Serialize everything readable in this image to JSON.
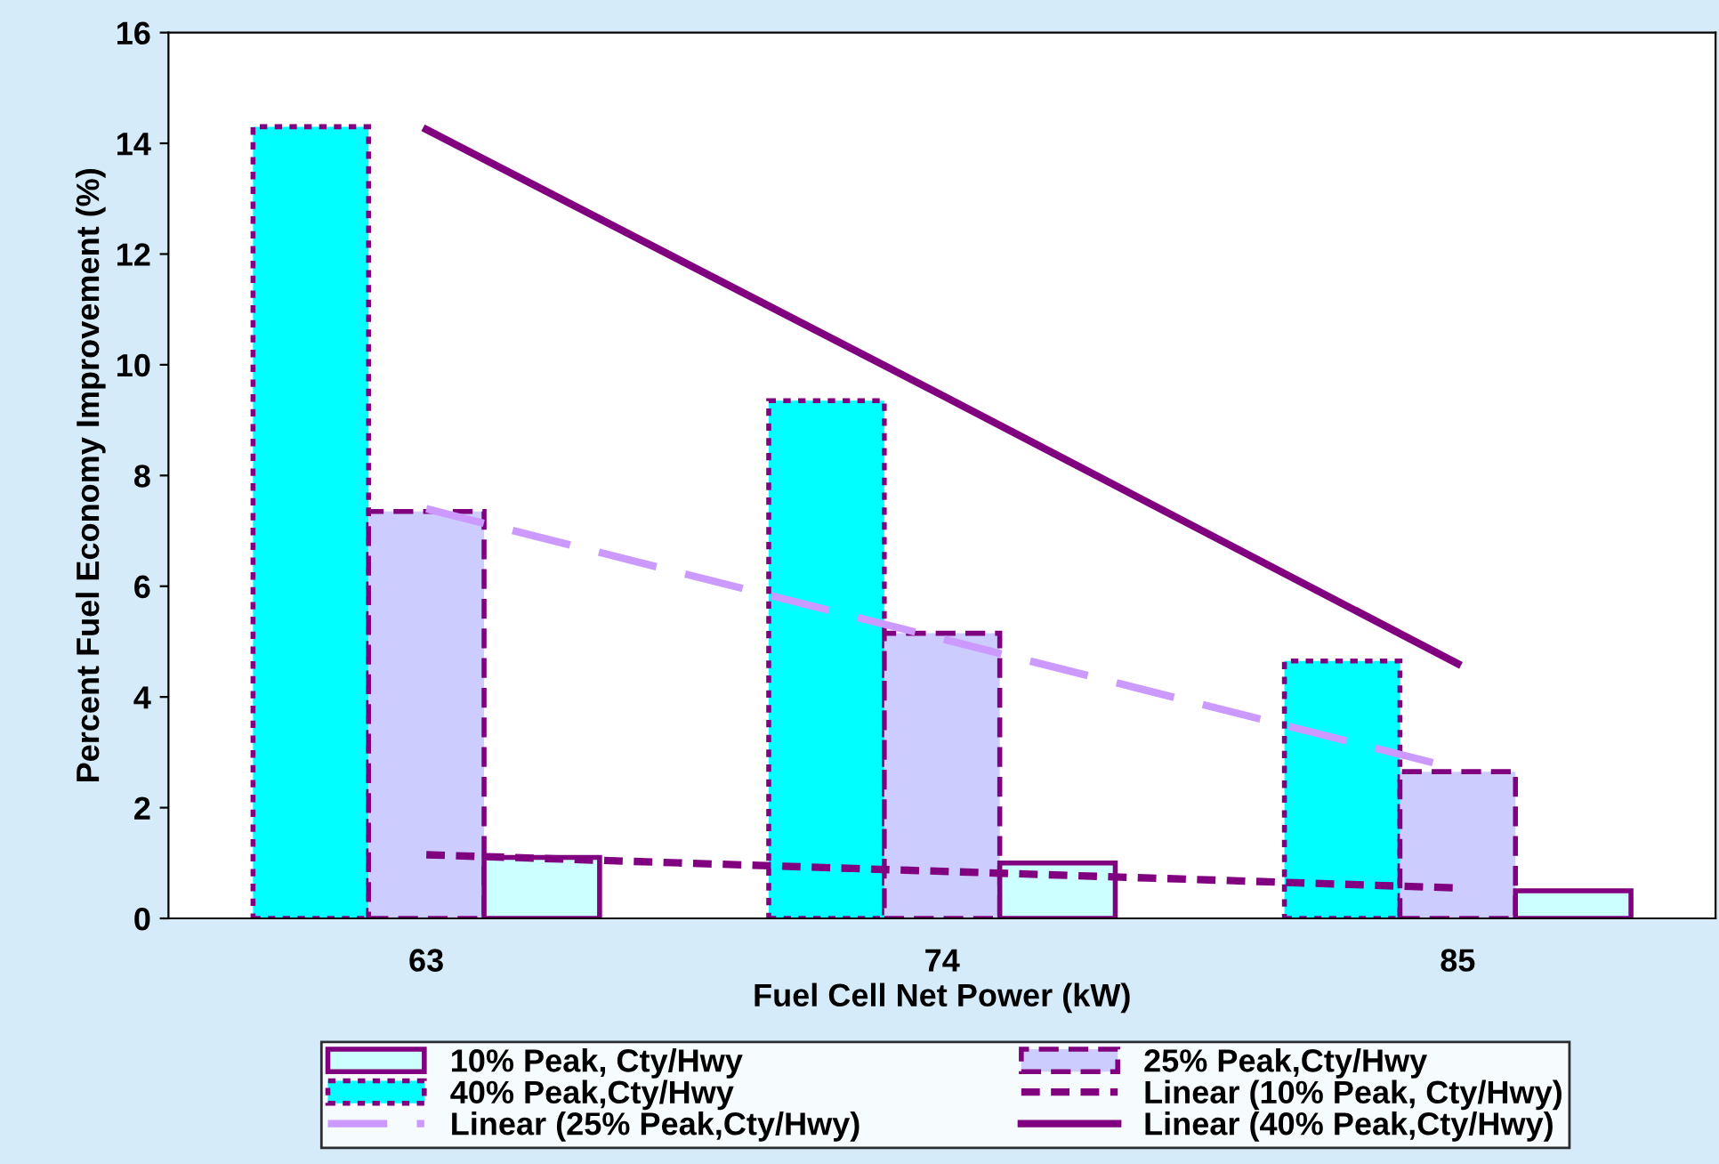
{
  "chart_data": {
    "type": "bar",
    "xlabel": "Fuel Cell Net Power (kW)",
    "ylabel": "Percent Fuel Economy Improvement (%)",
    "categories": [
      "63",
      "74",
      "85"
    ],
    "series": [
      {
        "name": "40% Peak,Cty/Hwy",
        "color": "#00ffff",
        "values": [
          14.3,
          9.35,
          4.65
        ],
        "line_style": "dotted"
      },
      {
        "name": "25% Peak,Cty/Hwy",
        "color": "#ccccff",
        "values": [
          7.35,
          5.15,
          2.65
        ],
        "line_style": "dashed"
      },
      {
        "name": "10% Peak, Cty/Hwy",
        "color": "#ccffff",
        "values": [
          1.1,
          1.0,
          0.5
        ],
        "line_style": "solid"
      },
      {
        "name": "Linear (10% Peak, Cty/Hwy)",
        "type": "line",
        "color": "#800080",
        "values": [
          1.15,
          0.85,
          0.55
        ],
        "line_style": "dotted"
      },
      {
        "name": "Linear (25% Peak,Cty/Hwy)",
        "type": "line",
        "color": "#cc99ff",
        "values": [
          7.4,
          5.05,
          2.7
        ],
        "line_style": "dashed"
      },
      {
        "name": "Linear (40% Peak,Cty/Hwy)",
        "type": "line",
        "color": "#800080",
        "values": [
          14.25,
          9.45,
          4.6
        ],
        "line_style": "solid"
      }
    ],
    "ylim": [
      0,
      16
    ],
    "yticks": [
      0,
      2,
      4,
      6,
      8,
      10,
      12,
      14,
      16
    ],
    "grid": false,
    "legend": "bottom"
  }
}
